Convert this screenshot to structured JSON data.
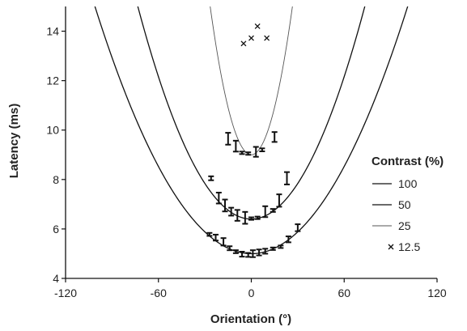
{
  "chart_data": {
    "type": "scatter",
    "title": "",
    "xlabel": "Orientation (°)",
    "ylabel": "Latency (ms)",
    "xlim": [
      -120,
      120
    ],
    "ylim": [
      4,
      15
    ],
    "xticks": [
      -120,
      -60,
      0,
      60,
      120
    ],
    "yticks": [
      4,
      6,
      8,
      10,
      12,
      14
    ],
    "xtick_labels": [
      "-120",
      "-60",
      "0",
      "60",
      "120"
    ],
    "ytick_labels": [
      "4",
      "6",
      "8",
      "10",
      "12",
      "14"
    ],
    "grid": false,
    "legend": {
      "title": "Contrast (%)",
      "placement": "right",
      "entries": [
        "100",
        "50",
        "25",
        "12.5"
      ]
    },
    "series": [
      {
        "name": "100",
        "marker": "errorbar",
        "color": "#111111",
        "fit": {
          "type": "parabola",
          "vertex": 5.0,
          "curvature": 0.00098
        },
        "points": [
          {
            "x": -27,
            "y": 5.78,
            "err": 0.06
          },
          {
            "x": -23,
            "y": 5.65,
            "err": 0.12
          },
          {
            "x": -18,
            "y": 5.48,
            "err": 0.15
          },
          {
            "x": -14,
            "y": 5.22,
            "err": 0.08
          },
          {
            "x": -10,
            "y": 5.08,
            "err": 0.06
          },
          {
            "x": -6,
            "y": 4.98,
            "err": 0.1
          },
          {
            "x": -2,
            "y": 4.95,
            "err": 0.08
          },
          {
            "x": 1,
            "y": 5.0,
            "err": 0.14
          },
          {
            "x": 5,
            "y": 5.05,
            "err": 0.12
          },
          {
            "x": 9,
            "y": 5.1,
            "err": 0.1
          },
          {
            "x": 14,
            "y": 5.2,
            "err": 0.05
          },
          {
            "x": 19,
            "y": 5.28,
            "err": 0.05
          },
          {
            "x": 24,
            "y": 5.58,
            "err": 0.12
          },
          {
            "x": 30,
            "y": 6.05,
            "err": 0.14
          }
        ]
      },
      {
        "name": "50",
        "marker": "errorbar",
        "color": "#111111",
        "fit": {
          "type": "parabola",
          "vertex": 6.4,
          "curvature": 0.0016
        },
        "points": [
          {
            "x": -26,
            "y": 8.05,
            "err": 0.08
          },
          {
            "x": -21,
            "y": 7.25,
            "err": 0.22
          },
          {
            "x": -17,
            "y": 6.95,
            "err": 0.24
          },
          {
            "x": -13,
            "y": 6.7,
            "err": 0.16
          },
          {
            "x": -9,
            "y": 6.55,
            "err": 0.22
          },
          {
            "x": -4,
            "y": 6.45,
            "err": 0.24
          },
          {
            "x": 0,
            "y": 6.42,
            "err": 0.05
          },
          {
            "x": 4,
            "y": 6.45,
            "err": 0.05
          },
          {
            "x": 9,
            "y": 6.7,
            "err": 0.22
          },
          {
            "x": 14,
            "y": 6.75,
            "err": 0.06
          },
          {
            "x": 18,
            "y": 7.15,
            "err": 0.25
          },
          {
            "x": 23,
            "y": 8.05,
            "err": 0.25
          }
        ]
      },
      {
        "name": "25",
        "marker": "errorbar",
        "color": "#555555",
        "fit": {
          "type": "parabola",
          "vertex": 9.0,
          "curvature": 0.0085
        },
        "points": [
          {
            "x": -15,
            "y": 9.65,
            "err": 0.24
          },
          {
            "x": -10,
            "y": 9.35,
            "err": 0.22
          },
          {
            "x": -6,
            "y": 9.08,
            "err": 0.05
          },
          {
            "x": -2,
            "y": 9.05,
            "err": 0.05
          },
          {
            "x": 3,
            "y": 9.12,
            "err": 0.2
          },
          {
            "x": 7,
            "y": 9.2,
            "err": 0.06
          },
          {
            "x": 15,
            "y": 9.72,
            "err": 0.2
          }
        ]
      },
      {
        "name": "12.5",
        "marker": "x",
        "color": "#111111",
        "points": [
          {
            "x": -5,
            "y": 13.5
          },
          {
            "x": 0,
            "y": 13.72
          },
          {
            "x": 4,
            "y": 14.2
          },
          {
            "x": 10,
            "y": 13.72
          }
        ]
      }
    ]
  }
}
